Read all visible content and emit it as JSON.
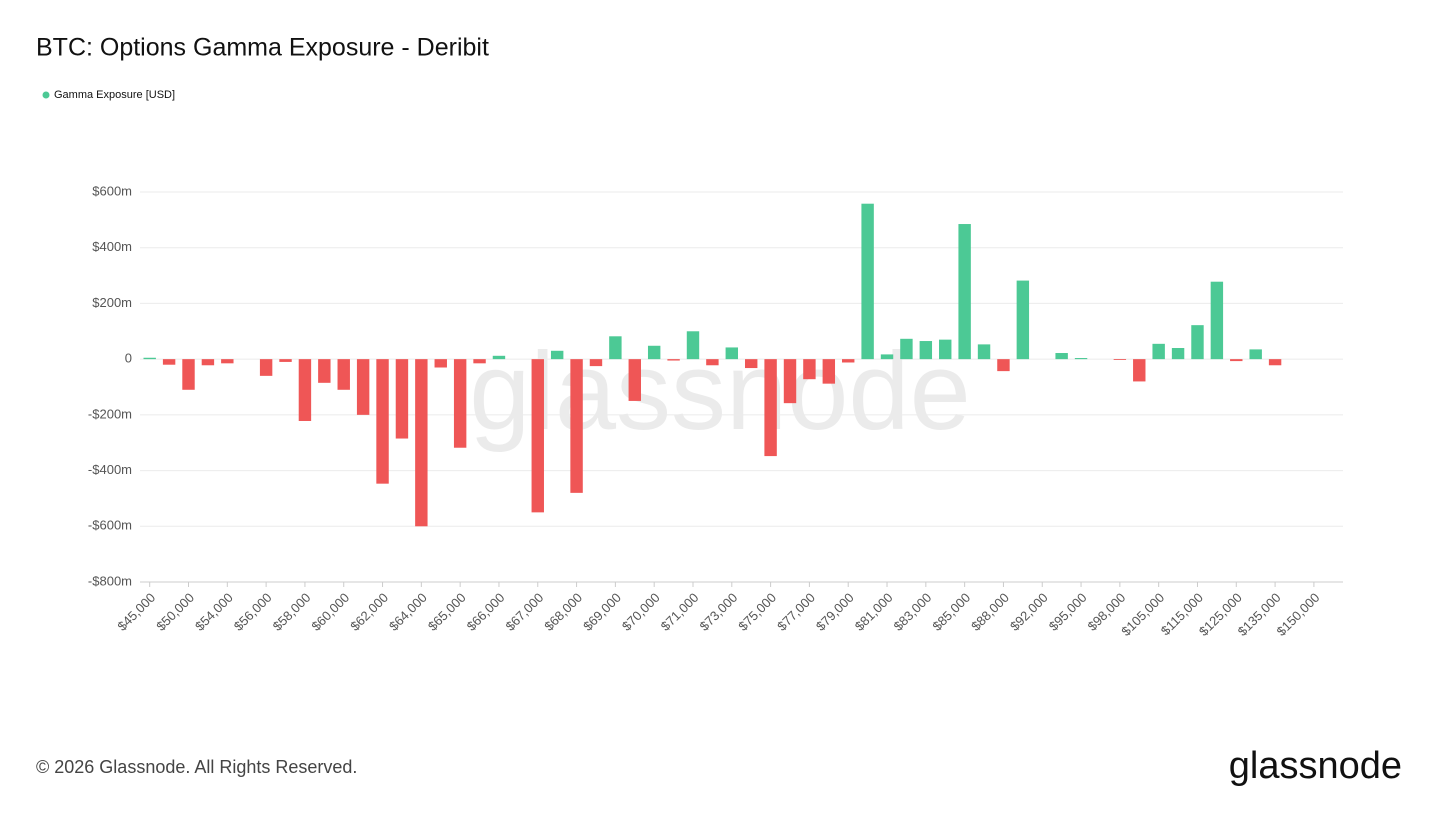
{
  "chart_data": {
    "type": "bar",
    "title": "BTC: Options Gamma Exposure - Deribit",
    "categories": [
      "$45,000",
      null,
      "$50,000",
      null,
      "$54,000",
      null,
      "$56,000",
      null,
      "$58,000",
      null,
      "$60,000",
      null,
      "$62,000",
      null,
      "$64,000",
      null,
      "$65,000",
      null,
      "$66,000",
      null,
      "$67,000",
      null,
      "$68,000",
      null,
      "$69,000",
      null,
      "$70,000",
      null,
      "$71,000",
      null,
      "$73,000",
      null,
      "$75,000",
      null,
      "$77,000",
      null,
      "$79,000",
      null,
      "$81,000",
      null,
      "$83,000",
      null,
      "$85,000",
      null,
      "$88,000",
      null,
      "$92,000",
      null,
      "$95,000",
      null,
      "$98,000",
      null,
      "$105,000",
      null,
      "$115,000",
      null,
      "$125,000",
      null,
      "$135,000",
      null,
      "$150,000",
      null
    ],
    "series": [
      {
        "name": "Gamma Exposure [USD]",
        "color": "#4cc995",
        "negative_color": "#ef5656",
        "values": [
          5,
          -20,
          -110,
          -22,
          -15,
          0,
          -60,
          -10,
          -222,
          -85,
          -110,
          -200,
          -447,
          -285,
          -600,
          -30,
          -318,
          -15,
          12,
          0,
          -550,
          30,
          -480,
          -25,
          82,
          -150,
          48,
          -5,
          100,
          -22,
          42,
          -32,
          -348,
          -158,
          -72,
          -88,
          -12,
          558,
          17,
          73,
          65,
          70,
          485,
          53,
          -43,
          282,
          0,
          22,
          4,
          0,
          -3,
          -80,
          55,
          40,
          122,
          278,
          -7,
          35,
          -22,
          0,
          0,
          0
        ]
      }
    ],
    "ylim": [
      -800,
      600
    ],
    "yticks": [
      {
        "value": -800,
        "label": "-$800m"
      },
      {
        "value": -600,
        "label": "-$600m"
      },
      {
        "value": -400,
        "label": "-$400m"
      },
      {
        "value": -200,
        "label": "-$200m"
      },
      0,
      {
        "value": 200,
        "label": "$200m"
      },
      {
        "value": 400,
        "label": "$400m"
      },
      {
        "value": 600,
        "label": "$600m"
      }
    ],
    "grid": true,
    "legend": "top-left",
    "watermark": "glassnode",
    "footer": "© 2026 Glassnode. All Rights Reserved.",
    "logo": "glassnode"
  }
}
